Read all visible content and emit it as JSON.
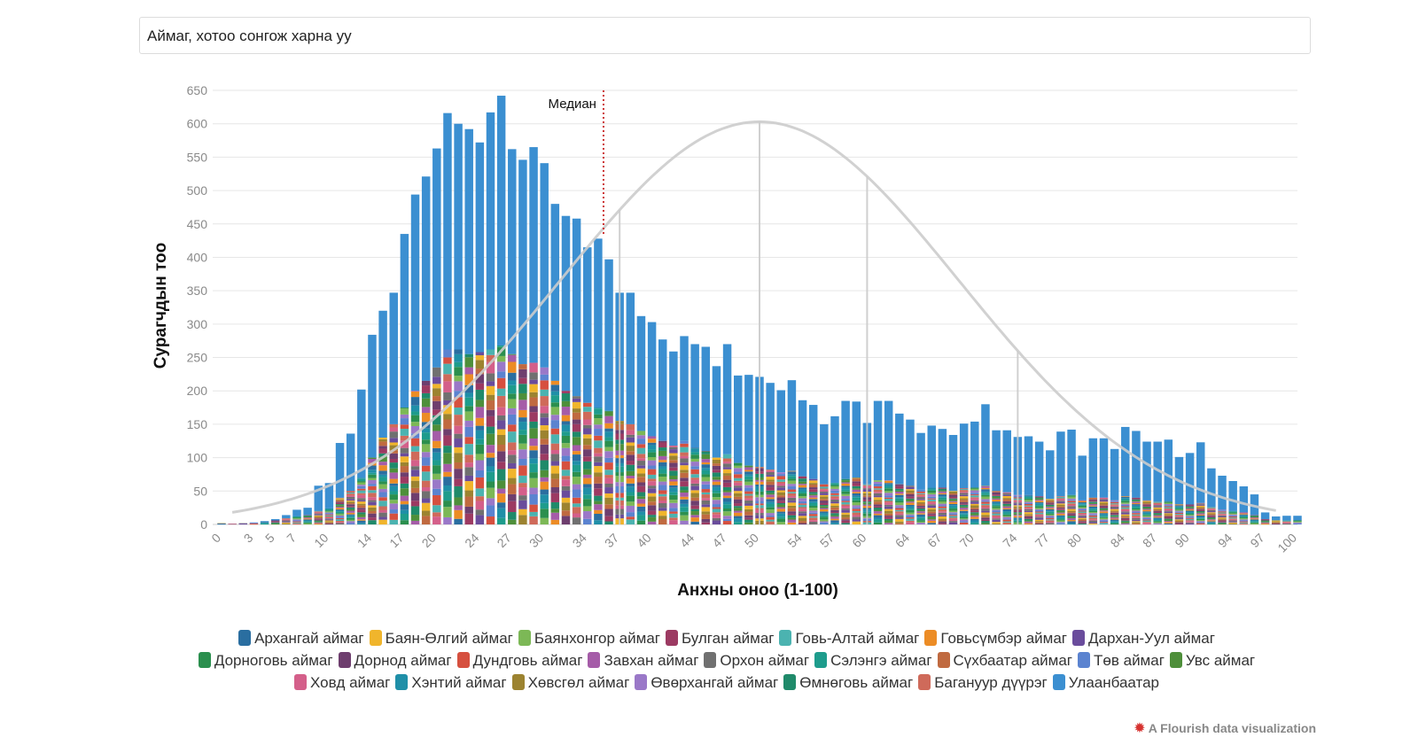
{
  "filter": {
    "placeholder": "Аймаг, хотоо сонгож харна уу"
  },
  "credit": {
    "icon": "flourish-logo-icon",
    "text": "A Flourish data visualization"
  },
  "chart_data": {
    "type": "bar",
    "stacked": true,
    "xlabel": "Анхны оноо (1-100)",
    "ylabel": "Сурагчдын тоо",
    "ylim": [
      0,
      650
    ],
    "yticks": [
      0,
      50,
      100,
      150,
      200,
      250,
      300,
      350,
      400,
      450,
      500,
      550,
      600,
      650
    ],
    "xlim": [
      0,
      100
    ],
    "xticks": [
      "0",
      "3",
      "5",
      "7",
      "10",
      "14",
      "17",
      "20",
      "24",
      "27",
      "30",
      "34",
      "37",
      "40",
      "44",
      "47",
      "50",
      "54",
      "57",
      "60",
      "64",
      "67",
      "70",
      "74",
      "77",
      "80",
      "84",
      "87",
      "90",
      "94",
      "97",
      "100"
    ],
    "grid": true,
    "legend_position": "bottom",
    "median": {
      "label": "Медиан",
      "x": 35.5,
      "color": "#cc3333"
    },
    "normal_curve": {
      "color": "#cccccc",
      "peak_x": 50,
      "peak_y": 603,
      "sigma": 18.5,
      "drop_x": [
        37,
        60,
        74
      ]
    },
    "x": [
      0,
      1,
      2,
      3,
      4,
      5,
      6,
      7,
      8,
      9,
      10,
      11,
      12,
      13,
      14,
      15,
      16,
      17,
      18,
      19,
      20,
      21,
      22,
      23,
      24,
      25,
      26,
      27,
      28,
      29,
      30,
      31,
      32,
      33,
      34,
      35,
      36,
      37,
      38,
      39,
      40,
      41,
      42,
      43,
      44,
      45,
      46,
      47,
      48,
      49,
      50,
      51,
      52,
      53,
      54,
      55,
      56,
      57,
      58,
      59,
      60,
      61,
      62,
      63,
      64,
      65,
      66,
      67,
      68,
      69,
      70,
      71,
      72,
      73,
      74,
      75,
      76,
      77,
      78,
      79,
      80,
      81,
      82,
      83,
      84,
      85,
      86,
      87,
      88,
      89,
      90,
      91,
      92,
      93,
      94,
      95,
      96,
      97,
      98,
      99,
      100
    ],
    "totals": [
      2,
      1,
      2,
      3,
      5,
      8,
      14,
      22,
      25,
      58,
      62,
      122,
      136,
      202,
      284,
      320,
      347,
      435,
      494,
      521,
      563,
      616,
      600,
      592,
      572,
      617,
      642,
      562,
      546,
      565,
      541,
      480,
      462,
      458,
      415,
      428,
      397,
      347,
      347,
      312,
      303,
      277,
      259,
      282,
      270,
      266,
      237,
      270,
      223,
      224,
      221,
      212,
      201,
      216,
      186,
      179,
      150,
      162,
      185,
      184,
      152,
      185,
      185,
      166,
      157,
      137,
      148,
      143,
      134,
      151,
      154,
      180,
      141,
      141,
      131,
      132,
      124,
      111,
      139,
      142,
      103,
      129,
      129,
      113,
      146,
      140,
      124,
      124,
      127,
      101,
      107,
      123,
      84,
      73,
      65,
      57,
      45,
      18,
      12,
      13,
      13
    ],
    "other_regions_totals": [
      2,
      1,
      2,
      3,
      4,
      6,
      9,
      12,
      14,
      20,
      24,
      40,
      50,
      70,
      100,
      130,
      150,
      175,
      200,
      215,
      235,
      262,
      262,
      255,
      258,
      262,
      268,
      255,
      240,
      242,
      235,
      215,
      200,
      192,
      182,
      175,
      170,
      155,
      150,
      140,
      132,
      125,
      118,
      125,
      115,
      110,
      100,
      105,
      92,
      88,
      86,
      82,
      78,
      80,
      72,
      68,
      60,
      62,
      68,
      70,
      60,
      66,
      66,
      60,
      58,
      52,
      55,
      55,
      50,
      54,
      55,
      58,
      50,
      48,
      44,
      44,
      42,
      38,
      42,
      44,
      36,
      40,
      40,
      36,
      42,
      40,
      36,
      34,
      34,
      30,
      30,
      32,
      26,
      22,
      20,
      18,
      14,
      8,
      6,
      6,
      6
    ],
    "series": [
      {
        "name": "Архангай аймаг",
        "color": "#2a6ea0"
      },
      {
        "name": "Баян-Өлгий аймаг",
        "color": "#f0b52c"
      },
      {
        "name": "Баянхонгор аймаг",
        "color": "#7cb856"
      },
      {
        "name": "Булган аймаг",
        "color": "#9c3a62"
      },
      {
        "name": "Говь-Алтай аймаг",
        "color": "#4bb3b0"
      },
      {
        "name": "Говьсүмбэр аймаг",
        "color": "#ec8c25"
      },
      {
        "name": "Дархан-Уул аймаг",
        "color": "#6a4c9c"
      },
      {
        "name": "Дорноговь аймаг",
        "color": "#2b8f4e"
      },
      {
        "name": "Дорнод аймаг",
        "color": "#6e3e6e"
      },
      {
        "name": "Дундговь аймаг",
        "color": "#d6503f"
      },
      {
        "name": "Завхан аймаг",
        "color": "#a55ca8"
      },
      {
        "name": "Орхон аймаг",
        "color": "#707070"
      },
      {
        "name": "Сэлэнгэ аймаг",
        "color": "#1e9c8c"
      },
      {
        "name": "Сүхбаатар аймаг",
        "color": "#c06a40"
      },
      {
        "name": "Төв аймаг",
        "color": "#5b83d0"
      },
      {
        "name": "Увс аймаг",
        "color": "#4e8f3a"
      },
      {
        "name": "Ховд аймаг",
        "color": "#d45f8a"
      },
      {
        "name": "Хэнтий аймаг",
        "color": "#1f8fa8"
      },
      {
        "name": "Хөвсгөл аймаг",
        "color": "#9c8330"
      },
      {
        "name": "Өвөрхангай аймаг",
        "color": "#9a78c8"
      },
      {
        "name": "Өмнөговь аймаг",
        "color": "#1f8a6a"
      },
      {
        "name": "Багануур дүүрэг",
        "color": "#cf6a5a"
      },
      {
        "name": "Улаанбаатар",
        "color": "#3b8fd1"
      }
    ]
  }
}
